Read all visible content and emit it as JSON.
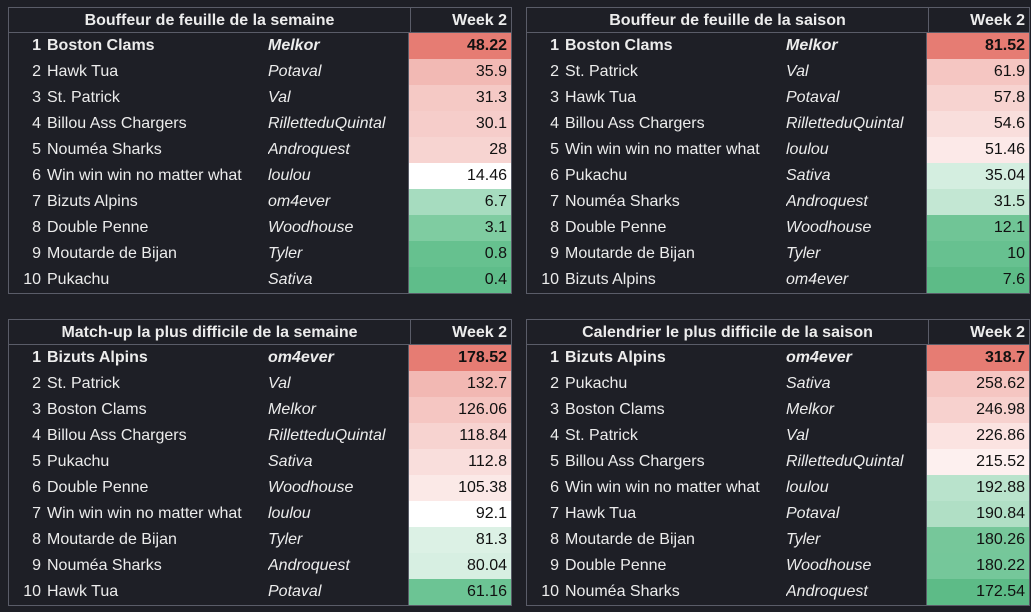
{
  "panels": [
    {
      "title": "Bouffeur de feuille de la semaine",
      "week": "Week 2",
      "rows": [
        {
          "rank": "1",
          "team": "Boston Clams",
          "owner": "Melkor",
          "value": "48.22",
          "color": "#e67c73"
        },
        {
          "rank": "2",
          "team": "Hawk Tua",
          "owner": "Potaval",
          "value": "35.9",
          "color": "#f2b9b4"
        },
        {
          "rank": "3",
          "team": "St. Patrick",
          "owner": "Val",
          "value": "31.3",
          "color": "#f5c9c5"
        },
        {
          "rank": "4",
          "team": "Billou Ass Chargers",
          "owner": "RilletteduQuintal",
          "value": "30.1",
          "color": "#f6cdca"
        },
        {
          "rank": "5",
          "team": "Nouméa Sharks",
          "owner": "Androquest",
          "value": "28",
          "color": "#f7d4d1"
        },
        {
          "rank": "6",
          "team": "Win win win no matter what",
          "owner": "loulou",
          "value": "14.46",
          "color": "#ffffff"
        },
        {
          "rank": "7",
          "team": "Bizuts Alpins",
          "owner": "om4ever",
          "value": "6.7",
          "color": "#a6dcbf"
        },
        {
          "rank": "8",
          "team": "Double Penne",
          "owner": "Woodhouse",
          "value": "3.1",
          "color": "#7fcca1"
        },
        {
          "rank": "9",
          "team": "Moutarde de Bijan",
          "owner": "Tyler",
          "value": "0.8",
          "color": "#66c18f"
        },
        {
          "rank": "10",
          "team": "Pukachu",
          "owner": "Sativa",
          "value": "0.4",
          "color": "#5fbd8a"
        }
      ]
    },
    {
      "title": "Bouffeur de feuille de la saison",
      "week": "Week 2",
      "rows": [
        {
          "rank": "1",
          "team": "Boston Clams",
          "owner": "Melkor",
          "value": "81.52",
          "color": "#e67c73"
        },
        {
          "rank": "2",
          "team": "St. Patrick",
          "owner": "Val",
          "value": "61.9",
          "color": "#f5c6c2"
        },
        {
          "rank": "3",
          "team": "Hawk Tua",
          "owner": "Potaval",
          "value": "57.8",
          "color": "#f7d3d0"
        },
        {
          "rank": "4",
          "team": "Billou Ass Chargers",
          "owner": "RilletteduQuintal",
          "value": "54.6",
          "color": "#f9dedc"
        },
        {
          "rank": "5",
          "team": "Win win win no matter what",
          "owner": "loulou",
          "value": "51.46",
          "color": "#fce9e8"
        },
        {
          "rank": "6",
          "team": "Pukachu",
          "owner": "Sativa",
          "value": "35.04",
          "color": "#d4eee0"
        },
        {
          "rank": "7",
          "team": "Nouméa Sharks",
          "owner": "Androquest",
          "value": "31.5",
          "color": "#c3e7d3"
        },
        {
          "rank": "8",
          "team": "Double Penne",
          "owner": "Woodhouse",
          "value": "12.1",
          "color": "#70c596"
        },
        {
          "rank": "9",
          "team": "Moutarde de Bijan",
          "owner": "Tyler",
          "value": "10",
          "color": "#67c190"
        },
        {
          "rank": "10",
          "team": "Bizuts Alpins",
          "owner": "om4ever",
          "value": "7.6",
          "color": "#5dbb87"
        }
      ]
    },
    {
      "title": "Match-up la plus difficile de la semaine",
      "week": "Week 2",
      "rows": [
        {
          "rank": "1",
          "team": "Bizuts Alpins",
          "owner": "om4ever",
          "value": "178.52",
          "color": "#e67c73"
        },
        {
          "rank": "2",
          "team": "St. Patrick",
          "owner": "Val",
          "value": "132.7",
          "color": "#f2b8b3"
        },
        {
          "rank": "3",
          "team": "Boston Clams",
          "owner": "Melkor",
          "value": "126.06",
          "color": "#f5c6c2"
        },
        {
          "rank": "4",
          "team": "Billou Ass Chargers",
          "owner": "RilletteduQuintal",
          "value": "118.84",
          "color": "#f7d3d0"
        },
        {
          "rank": "5",
          "team": "Pukachu",
          "owner": "Sativa",
          "value": "112.8",
          "color": "#f9dedc"
        },
        {
          "rank": "6",
          "team": "Double Penne",
          "owner": "Woodhouse",
          "value": "105.38",
          "color": "#fbe9e7"
        },
        {
          "rank": "7",
          "team": "Win win win no matter what",
          "owner": "loulou",
          "value": "92.1",
          "color": "#ffffff"
        },
        {
          "rank": "8",
          "team": "Moutarde de Bijan",
          "owner": "Tyler",
          "value": "81.3",
          "color": "#dcf1e5"
        },
        {
          "rank": "9",
          "team": "Nouméa Sharks",
          "owner": "Androquest",
          "value": "80.04",
          "color": "#d7efe2"
        },
        {
          "rank": "10",
          "team": "Hawk Tua",
          "owner": "Potaval",
          "value": "61.16",
          "color": "#6cc494"
        }
      ]
    },
    {
      "title": "Calendrier le plus difficile de la saison",
      "week": "Week 2",
      "rows": [
        {
          "rank": "1",
          "team": "Bizuts Alpins",
          "owner": "om4ever",
          "value": "318.7",
          "color": "#e67c73"
        },
        {
          "rank": "2",
          "team": "Pukachu",
          "owner": "Sativa",
          "value": "258.62",
          "color": "#f5c6c2"
        },
        {
          "rank": "3",
          "team": "Boston Clams",
          "owner": "Melkor",
          "value": "246.98",
          "color": "#f7d1ce"
        },
        {
          "rank": "4",
          "team": "St. Patrick",
          "owner": "Val",
          "value": "226.86",
          "color": "#fbe3e1"
        },
        {
          "rank": "5",
          "team": "Billou Ass Chargers",
          "owner": "RilletteduQuintal",
          "value": "215.52",
          "color": "#fdf0ef"
        },
        {
          "rank": "6",
          "team": "Win win win no matter what",
          "owner": "loulou",
          "value": "192.88",
          "color": "#b9e3cc"
        },
        {
          "rank": "7",
          "team": "Hawk Tua",
          "owner": "Potaval",
          "value": "190.84",
          "color": "#b0dfc5"
        },
        {
          "rank": "8",
          "team": "Moutarde de Bijan",
          "owner": "Tyler",
          "value": "180.26",
          "color": "#76c79a"
        },
        {
          "rank": "9",
          "team": "Double Penne",
          "owner": "Woodhouse",
          "value": "180.22",
          "color": "#75c79a"
        },
        {
          "rank": "10",
          "team": "Nouméa Sharks",
          "owner": "Androquest",
          "value": "172.54",
          "color": "#5dbb87"
        }
      ]
    }
  ]
}
